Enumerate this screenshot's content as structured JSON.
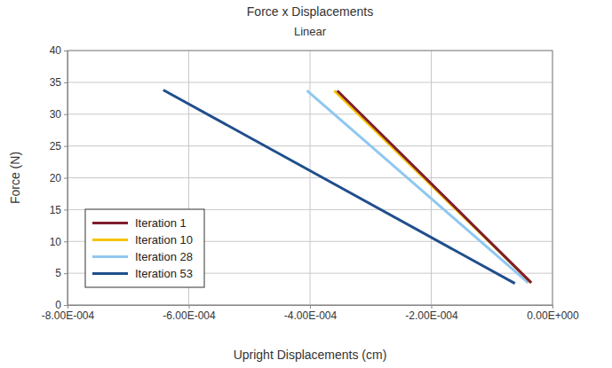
{
  "chart_data": {
    "type": "line",
    "title": "Force x Displacements",
    "subtitle": "Linear",
    "x_label": "Upright Displacements (cm)",
    "y_label": "Force (N)",
    "xlim": [
      -0.0008,
      0
    ],
    "xticks": [
      {
        "value": -0.0008,
        "label": "-8.00E-004"
      },
      {
        "value": -0.0006,
        "label": "-6.00E-004"
      },
      {
        "value": -0.0004,
        "label": "-4.00E-004"
      },
      {
        "value": -0.0002,
        "label": "-2.00E-004"
      },
      {
        "value": 0,
        "label": "0.00E+000"
      }
    ],
    "ylim": [
      0,
      40
    ],
    "yticks": [
      0,
      5,
      10,
      15,
      20,
      25,
      30,
      35,
      40
    ],
    "grid": true,
    "legend": "lower left",
    "series": [
      {
        "name": "Iteration 1",
        "color": "#7f1d2d",
        "x": [
          -0.000355,
          -3.5e-05
        ],
        "values": [
          33.7,
          3.5
        ]
      },
      {
        "name": "Iteration 10",
        "color": "#f5c400",
        "x": [
          -0.00036,
          -3.5e-05
        ],
        "values": [
          33.7,
          3.5
        ]
      },
      {
        "name": "Iteration 28",
        "color": "#8fc8f0",
        "x": [
          -0.000405,
          -4e-05
        ],
        "values": [
          33.7,
          3.5
        ]
      },
      {
        "name": "Iteration 53",
        "color": "#1f4e8c",
        "x": [
          -0.000642,
          -6.2e-05
        ],
        "values": [
          33.8,
          3.4
        ]
      }
    ]
  }
}
